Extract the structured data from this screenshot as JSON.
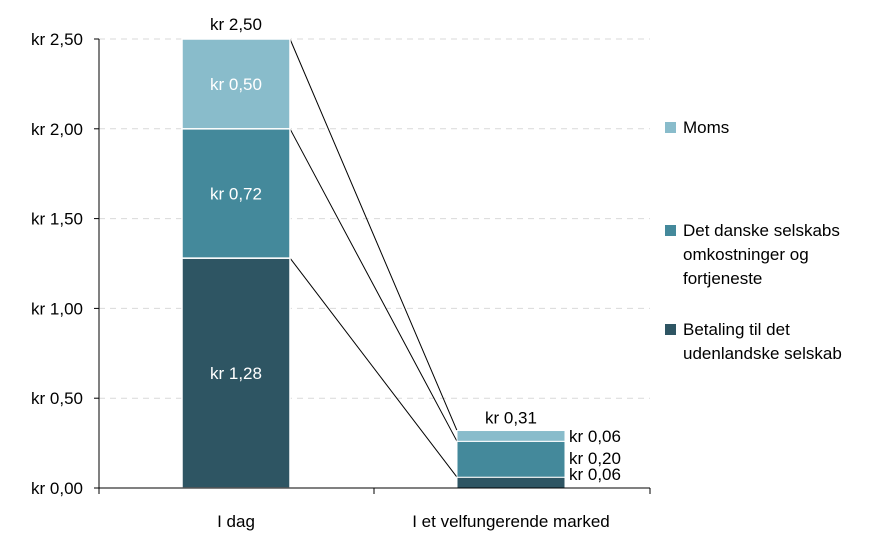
{
  "chart_data": {
    "type": "bar",
    "stacked": true,
    "categories": [
      "I dag",
      "I et velfungerende marked"
    ],
    "series": [
      {
        "name": "Betaling til det udenlandske selskab",
        "values": [
          1.28,
          0.06
        ],
        "labels": [
          "kr 1,28",
          "kr 0,06"
        ],
        "color": "#2e5563"
      },
      {
        "name": "Det danske selskabs omkostninger og fortjeneste",
        "values": [
          0.72,
          0.2
        ],
        "labels": [
          "kr 0,72",
          "kr 0,20"
        ],
        "color": "#44899b"
      },
      {
        "name": "Moms",
        "values": [
          0.5,
          0.06
        ],
        "labels": [
          "kr 0,50",
          "kr 0,06"
        ],
        "color": "#89bccb"
      }
    ],
    "totals": [
      2.5,
      0.31
    ],
    "total_labels": [
      "kr 2,50",
      "kr 0,31"
    ],
    "ylim": [
      0,
      2.5
    ],
    "yticks": [
      0,
      0.5,
      1.0,
      1.5,
      2.0,
      2.5
    ],
    "ytick_labels": [
      "kr 0,00",
      "kr 0,50",
      "kr 1,00",
      "kr 1,50",
      "kr 2,00",
      "kr 2,50"
    ],
    "grid": true,
    "legend_position": "right",
    "legend": [
      {
        "lines": [
          "Moms"
        ],
        "color": "#89bccb"
      },
      {
        "lines": [
          "Det danske selskabs",
          "omkostninger og",
          "fortjeneste"
        ],
        "color": "#44899b"
      },
      {
        "lines": [
          "Betaling til det",
          "udenlandske selskab"
        ],
        "color": "#2e5563"
      }
    ]
  }
}
